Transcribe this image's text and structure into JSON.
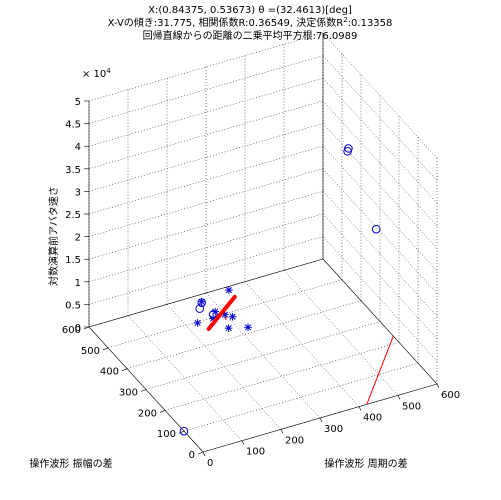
{
  "title": {
    "line1": "X:(0.84375, 0.53673)  θ =(32.4613)[deg]",
    "line2_prefix": "X-Vの傾き:31.775, 相関係数R:0.36549, 決定係数R",
    "line2_sup": "2",
    "line2_suffix": ":0.13358",
    "line3": "回帰直線からの距離の二乗平均平方根:76.0989"
  },
  "chart_data": {
    "type": "scatter",
    "title": "X:(0.84375, 0.53673)  θ =(32.4613)[deg]",
    "xlabel": "操作波形 周期の差",
    "ylabel": "操作波形 振幅の差",
    "zlabel": "対数演算前アバタ速さ",
    "z_multiplier": "× 10",
    "z_multiplier_exp": "4",
    "xlim": [
      0,
      600
    ],
    "ylim": [
      0,
      600
    ],
    "zlim": [
      0,
      50000
    ],
    "xticks": [
      "0",
      "100",
      "200",
      "300",
      "400",
      "500",
      "600"
    ],
    "yticks": [
      "0",
      "100",
      "200",
      "300",
      "400",
      "500",
      "600"
    ],
    "zticks": [
      "0",
      "0.5",
      "1",
      "1.5",
      "2",
      "2.5",
      "3",
      "3.5",
      "4",
      "4.5",
      "5"
    ],
    "grid": true,
    "series": [
      {
        "marker": "circle",
        "color": "#0000cc",
        "points": [
          {
            "x": 600,
            "y": 320,
            "z": 19500
          },
          {
            "x": 590,
            "y": 450,
            "z": 31000
          },
          {
            "x": 597,
            "y": 460,
            "z": 31000
          },
          {
            "x": 0,
            "y": 100,
            "z": 0
          },
          {
            "x": 240,
            "y": 510,
            "z": 2200
          },
          {
            "x": 260,
            "y": 480,
            "z": 1800
          },
          {
            "x": 250,
            "y": 520,
            "z": 2800
          }
        ]
      },
      {
        "marker": "star",
        "color": "#0000cc",
        "points": [
          {
            "x": 310,
            "y": 500,
            "z": 5000
          },
          {
            "x": 250,
            "y": 520,
            "z": 3000
          },
          {
            "x": 215,
            "y": 470,
            "z": 1500
          },
          {
            "x": 300,
            "y": 460,
            "z": 1200
          },
          {
            "x": 255,
            "y": 470,
            "z": 1500
          },
          {
            "x": 320,
            "y": 420,
            "z": 200
          },
          {
            "x": 280,
            "y": 440,
            "z": 100
          },
          {
            "x": 290,
            "y": 480,
            "z": 1000
          },
          {
            "x": 270,
            "y": 490,
            "z": 1700
          }
        ]
      }
    ],
    "regression_line": {
      "color": "#ff0000",
      "from": {
        "x": 238,
        "y": 459,
        "z": 100
      },
      "to": {
        "x": 320,
        "y": 490,
        "z": 3700
      }
    },
    "floor_line": {
      "color": "#ff0000",
      "from": {
        "x": 420,
        "y": 0,
        "z": 0
      },
      "to": {
        "x": 600,
        "y": 230,
        "z": 0
      }
    },
    "drop_line": {
      "color": "#ff0000",
      "from": {
        "x": 290,
        "y": 475,
        "z": 0
      },
      "to": {
        "x": 290,
        "y": 475,
        "z": 1000
      }
    }
  }
}
